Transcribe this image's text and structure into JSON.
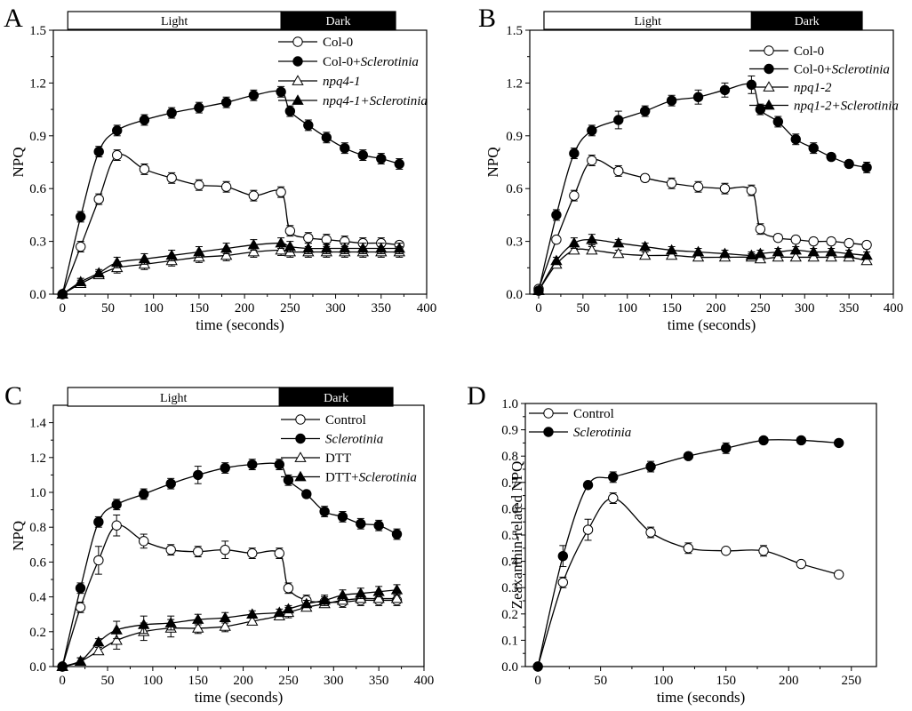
{
  "chart_data": [
    {
      "panel": "A",
      "type": "line",
      "xlabel": "time (seconds)",
      "ylabel": "NPQ",
      "xlim": [
        -10,
        400
      ],
      "ylim": [
        0,
        1.5
      ],
      "xticks": [
        0,
        50,
        100,
        150,
        200,
        250,
        300,
        350,
        400
      ],
      "yticks": [
        "0.0",
        "0.3",
        "0.6",
        "0.9",
        "1.2",
        "1.5"
      ],
      "light_bar": {
        "light": "Light",
        "dark": "Dark",
        "switch_at": 240
      },
      "legend_position": "top-right",
      "x": [
        0,
        20,
        40,
        60,
        90,
        120,
        150,
        180,
        210,
        240,
        250,
        270,
        290,
        310,
        330,
        350,
        370
      ],
      "series": [
        {
          "name": "Col-0",
          "marker": "circle-open",
          "values": [
            0,
            0.27,
            0.54,
            0.79,
            0.71,
            0.66,
            0.62,
            0.61,
            0.56,
            0.58,
            0.36,
            0.32,
            0.31,
            0.3,
            0.29,
            0.29,
            0.28
          ],
          "errors": [
            0,
            0.03,
            0.03,
            0.03,
            0.03,
            0.03,
            0.03,
            0.03,
            0.03,
            0.03,
            0.03,
            0.03,
            0.03,
            0.03,
            0.03,
            0.03,
            0.02
          ]
        },
        {
          "name": "Col-0+Sclerotinia",
          "name_plain": "Col-0+",
          "name_italic": "Sclerotinia",
          "marker": "circle-filled",
          "values": [
            0,
            0.44,
            0.81,
            0.93,
            0.99,
            1.03,
            1.06,
            1.09,
            1.13,
            1.15,
            1.04,
            0.96,
            0.89,
            0.83,
            0.79,
            0.77,
            0.74
          ],
          "errors": [
            0,
            0.03,
            0.03,
            0.03,
            0.03,
            0.03,
            0.03,
            0.03,
            0.03,
            0.03,
            0.03,
            0.03,
            0.03,
            0.03,
            0.03,
            0.03,
            0.03
          ]
        },
        {
          "name": "npq4-1",
          "name_italic": "npq4-1",
          "marker": "triangle-open",
          "values": [
            0,
            0.06,
            0.11,
            0.15,
            0.17,
            0.19,
            0.21,
            0.22,
            0.24,
            0.25,
            0.24,
            0.24,
            0.24,
            0.24,
            0.24,
            0.24,
            0.24
          ],
          "errors": [
            0,
            0.02,
            0.02,
            0.03,
            0.03,
            0.03,
            0.03,
            0.03,
            0.03,
            0.03,
            0.03,
            0.03,
            0.03,
            0.03,
            0.03,
            0.03,
            0.03
          ]
        },
        {
          "name": "npq4-1+Sclerotinia",
          "name_italic": "npq4-1+Sclerotinia",
          "marker": "triangle-filled",
          "values": [
            0,
            0.07,
            0.12,
            0.18,
            0.2,
            0.22,
            0.24,
            0.26,
            0.28,
            0.29,
            0.27,
            0.26,
            0.26,
            0.26,
            0.26,
            0.26,
            0.26
          ],
          "errors": [
            0,
            0.02,
            0.02,
            0.03,
            0.03,
            0.03,
            0.03,
            0.03,
            0.03,
            0.03,
            0.03,
            0.03,
            0.03,
            0.03,
            0.03,
            0.03,
            0.03
          ]
        }
      ]
    },
    {
      "panel": "B",
      "type": "line",
      "xlabel": "time (seconds)",
      "ylabel": "NPQ",
      "xlim": [
        -10,
        400
      ],
      "ylim": [
        0,
        1.5
      ],
      "xticks": [
        0,
        50,
        100,
        150,
        200,
        250,
        300,
        350,
        400
      ],
      "yticks": [
        "0.0",
        "0.3",
        "0.6",
        "0.9",
        "1.2",
        "1.5"
      ],
      "light_bar": {
        "light": "Light",
        "dark": "Dark",
        "switch_at": 240
      },
      "legend_position": "top-right",
      "x": [
        0,
        20,
        40,
        60,
        90,
        120,
        150,
        180,
        210,
        240,
        250,
        270,
        290,
        310,
        330,
        350,
        370
      ],
      "series": [
        {
          "name": "Col-0",
          "marker": "circle-open",
          "values": [
            0.03,
            0.31,
            0.56,
            0.76,
            0.7,
            0.66,
            0.63,
            0.61,
            0.6,
            0.59,
            0.37,
            0.32,
            0.31,
            0.3,
            0.3,
            0.29,
            0.28
          ],
          "errors": [
            0,
            0.02,
            0.03,
            0.03,
            0.03,
            0.02,
            0.03,
            0.03,
            0.03,
            0.03,
            0.03,
            0.02,
            0.02,
            0.02,
            0.02,
            0.02,
            0.02
          ]
        },
        {
          "name": "Col-0+Sclerotinia",
          "name_plain": "Col-0+",
          "name_italic": "Sclerotinia",
          "marker": "circle-filled",
          "values": [
            0.02,
            0.45,
            0.8,
            0.93,
            0.99,
            1.04,
            1.1,
            1.12,
            1.16,
            1.19,
            1.05,
            0.98,
            0.88,
            0.83,
            0.78,
            0.74,
            0.72
          ],
          "errors": [
            0,
            0.03,
            0.03,
            0.03,
            0.05,
            0.03,
            0.03,
            0.04,
            0.04,
            0.05,
            0.03,
            0.03,
            0.03,
            0.03,
            0.02,
            0.02,
            0.03
          ]
        },
        {
          "name": "npq1-2",
          "name_italic": "npq1-2",
          "marker": "triangle-open",
          "values": [
            0.02,
            0.17,
            0.25,
            0.25,
            0.23,
            0.22,
            0.22,
            0.21,
            0.21,
            0.21,
            0.2,
            0.21,
            0.21,
            0.21,
            0.21,
            0.21,
            0.19
          ],
          "errors": [
            0,
            0.02,
            0.02,
            0.02,
            0.02,
            0.02,
            0.02,
            0.02,
            0.02,
            0.02,
            0.02,
            0.02,
            0.02,
            0.02,
            0.02,
            0.02,
            0.02
          ]
        },
        {
          "name": "npq1-2+Sclerotinia",
          "name_italic": "npq1-2+Sclerotinia",
          "marker": "triangle-filled",
          "values": [
            0.02,
            0.19,
            0.29,
            0.31,
            0.29,
            0.27,
            0.25,
            0.24,
            0.23,
            0.22,
            0.23,
            0.24,
            0.25,
            0.24,
            0.24,
            0.23,
            0.22
          ],
          "errors": [
            0,
            0.02,
            0.03,
            0.03,
            0.02,
            0.02,
            0.02,
            0.02,
            0.02,
            0.02,
            0.02,
            0.02,
            0.02,
            0.02,
            0.02,
            0.02,
            0.02
          ]
        }
      ]
    },
    {
      "panel": "C",
      "type": "line",
      "xlabel": "time (seconds)",
      "ylabel": "NPQ",
      "xlim": [
        -10,
        400
      ],
      "ylim": [
        0,
        1.5
      ],
      "xticks": [
        0,
        50,
        100,
        150,
        200,
        250,
        300,
        350,
        400
      ],
      "yticks": [
        "0.0",
        "0.2",
        "0.4",
        "0.6",
        "0.8",
        "1.0",
        "1.2",
        "1.4"
      ],
      "ytick_values": [
        0,
        0.2,
        0.4,
        0.6,
        0.8,
        1.0,
        1.2,
        1.4
      ],
      "light_bar": {
        "light": "Light",
        "dark": "Dark",
        "switch_at": 240
      },
      "legend_position": "top-right",
      "x": [
        0,
        20,
        40,
        60,
        90,
        120,
        150,
        180,
        210,
        240,
        250,
        270,
        290,
        310,
        330,
        350,
        370
      ],
      "series": [
        {
          "name": "Control",
          "marker": "circle-open",
          "values": [
            0,
            0.34,
            0.61,
            0.81,
            0.72,
            0.67,
            0.66,
            0.67,
            0.65,
            0.65,
            0.45,
            0.38,
            0.37,
            0.37,
            0.38,
            0.38,
            0.38
          ],
          "errors": [
            0,
            0.03,
            0.08,
            0.06,
            0.04,
            0.03,
            0.03,
            0.05,
            0.03,
            0.03,
            0.03,
            0.03,
            0.03,
            0.03,
            0.03,
            0.03,
            0.03
          ]
        },
        {
          "name": "Sclerotinia",
          "name_italic": "Sclerotinia",
          "marker": "circle-filled",
          "values": [
            0,
            0.45,
            0.83,
            0.93,
            0.99,
            1.05,
            1.1,
            1.14,
            1.16,
            1.16,
            1.07,
            0.99,
            0.89,
            0.86,
            0.82,
            0.81,
            0.76
          ],
          "errors": [
            0,
            0.03,
            0.03,
            0.03,
            0.03,
            0.03,
            0.05,
            0.03,
            0.03,
            0.03,
            0.03,
            0.02,
            0.03,
            0.03,
            0.03,
            0.03,
            0.03
          ]
        },
        {
          "name": "DTT",
          "marker": "triangle-open",
          "values": [
            0,
            0.03,
            0.09,
            0.15,
            0.2,
            0.22,
            0.22,
            0.23,
            0.26,
            0.29,
            0.31,
            0.34,
            0.36,
            0.38,
            0.39,
            0.39,
            0.39
          ],
          "errors": [
            0,
            0.02,
            0.02,
            0.05,
            0.05,
            0.05,
            0.03,
            0.03,
            0.02,
            0.02,
            0.03,
            0.02,
            0.02,
            0.02,
            0.02,
            0.02,
            0.02
          ]
        },
        {
          "name": "DTT+Sclerotinia",
          "name_plain": "DTT+",
          "name_italic": "Sclerotinia",
          "marker": "triangle-filled",
          "values": [
            0,
            0.03,
            0.14,
            0.21,
            0.24,
            0.25,
            0.27,
            0.28,
            0.3,
            0.31,
            0.33,
            0.36,
            0.38,
            0.41,
            0.42,
            0.43,
            0.44
          ],
          "errors": [
            0,
            0.02,
            0.02,
            0.05,
            0.05,
            0.04,
            0.03,
            0.03,
            0.02,
            0.02,
            0.02,
            0.02,
            0.03,
            0.03,
            0.03,
            0.03,
            0.03
          ]
        }
      ]
    },
    {
      "panel": "D",
      "type": "line",
      "xlabel": "time (seconds)",
      "ylabel": "Zeaxanthin-related NPQ",
      "xlim": [
        -10,
        270
      ],
      "ylim": [
        0,
        1.0
      ],
      "xticks": [
        0,
        50,
        100,
        150,
        200,
        250
      ],
      "yticks": [
        "0.0",
        "0.1",
        "0.2",
        "0.3",
        "0.4",
        "0.5",
        "0.6",
        "0.7",
        "0.8",
        "0.9",
        "1.0"
      ],
      "ytick_values": [
        0,
        0.1,
        0.2,
        0.3,
        0.4,
        0.5,
        0.6,
        0.7,
        0.8,
        0.9,
        1.0
      ],
      "legend_position": "top-left",
      "x": [
        0,
        20,
        40,
        60,
        90,
        120,
        150,
        180,
        210,
        240
      ],
      "series": [
        {
          "name": "Control",
          "marker": "circle-open",
          "values": [
            0,
            0.32,
            0.52,
            0.64,
            0.51,
            0.45,
            0.44,
            0.44,
            0.39,
            0.35
          ],
          "errors": [
            0,
            0.02,
            0.04,
            0.02,
            0.02,
            0.02,
            0.01,
            0.02,
            0.01,
            0.01
          ]
        },
        {
          "name": "Sclerotinia",
          "name_italic": "Sclerotinia",
          "marker": "circle-filled",
          "values": [
            0,
            0.42,
            0.69,
            0.72,
            0.76,
            0.8,
            0.83,
            0.86,
            0.86,
            0.85
          ],
          "errors": [
            0,
            0.04,
            0.01,
            0.02,
            0.02,
            0.01,
            0.02,
            0.01,
            0.01,
            0.01
          ]
        }
      ]
    }
  ]
}
